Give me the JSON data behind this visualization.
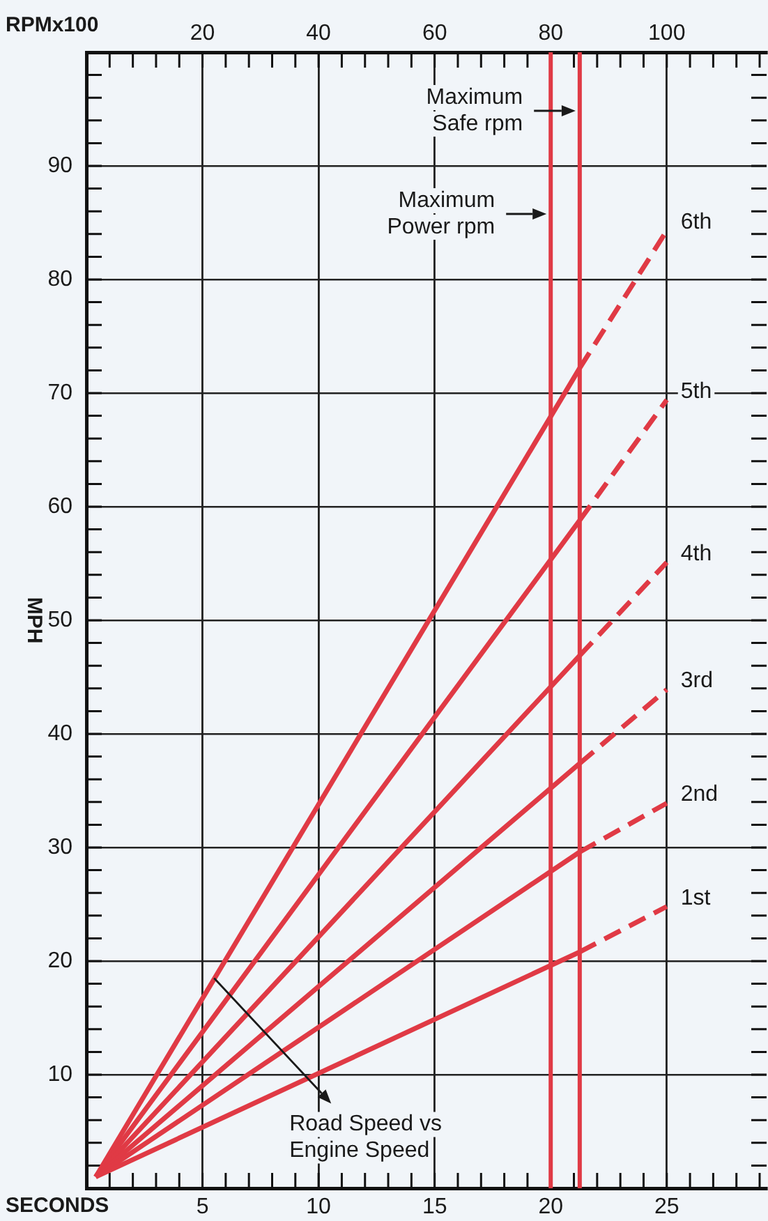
{
  "chart_data": {
    "type": "line",
    "xlabel": "SECONDS",
    "x2label": "RPMx100",
    "ylabel": "MPH",
    "xlim": [
      0,
      29.3
    ],
    "xticks": [
      {
        "value": 1,
        "label": null
      },
      {
        "value": 2,
        "label": null
      },
      {
        "value": 3,
        "label": null
      },
      {
        "value": 4,
        "label": null
      },
      5,
      {
        "value": 6,
        "label": null
      },
      {
        "value": 7,
        "label": null
      },
      {
        "value": 8,
        "label": null
      },
      {
        "value": 9,
        "label": null
      },
      10,
      {
        "value": 11,
        "label": null
      },
      {
        "value": 12,
        "label": null
      },
      {
        "value": 13,
        "label": null
      },
      {
        "value": 14,
        "label": null
      },
      15,
      {
        "value": 16,
        "label": null
      },
      {
        "value": 17,
        "label": null
      },
      {
        "value": 18,
        "label": null
      },
      {
        "value": 19,
        "label": null
      },
      20,
      {
        "value": 21,
        "label": null
      },
      {
        "value": 22,
        "label": null
      },
      {
        "value": 23,
        "label": null
      },
      {
        "value": 24,
        "label": null
      },
      25,
      {
        "value": 26,
        "label": null
      },
      {
        "value": 27,
        "label": null
      },
      {
        "value": 28,
        "label": null
      },
      {
        "value": 29,
        "label": null
      }
    ],
    "x2lim": [
      0,
      117.2
    ],
    "x2ticks": [
      {
        "value": 4,
        "label": null
      },
      {
        "value": 8,
        "label": null
      },
      {
        "value": 12,
        "label": null
      },
      {
        "value": 16,
        "label": null
      },
      20,
      {
        "value": 24,
        "label": null
      },
      {
        "value": 28,
        "label": null
      },
      {
        "value": 32,
        "label": null
      },
      {
        "value": 36,
        "label": null
      },
      40,
      {
        "value": 44,
        "label": null
      },
      {
        "value": 48,
        "label": null
      },
      {
        "value": 52,
        "label": null
      },
      {
        "value": 56,
        "label": null
      },
      60,
      {
        "value": 64,
        "label": null
      },
      {
        "value": 68,
        "label": null
      },
      {
        "value": 72,
        "label": null
      },
      {
        "value": 76,
        "label": null
      },
      80,
      {
        "value": 84,
        "label": null
      },
      {
        "value": 88,
        "label": null
      },
      {
        "value": 92,
        "label": null
      },
      {
        "value": 96,
        "label": null
      },
      100,
      {
        "value": 104,
        "label": null
      },
      {
        "value": 108,
        "label": null
      },
      {
        "value": 112,
        "label": null
      },
      {
        "value": 116,
        "label": null
      }
    ],
    "ylim": [
      0,
      100
    ],
    "yticks": [
      {
        "value": 2,
        "label": null
      },
      {
        "value": 4,
        "label": null
      },
      {
        "value": 6,
        "label": null
      },
      {
        "value": 8,
        "label": null
      },
      10,
      {
        "value": 12,
        "label": null
      },
      {
        "value": 14,
        "label": null
      },
      {
        "value": 16,
        "label": null
      },
      {
        "value": 18,
        "label": null
      },
      20,
      {
        "value": 22,
        "label": null
      },
      {
        "value": 24,
        "label": null
      },
      {
        "value": 26,
        "label": null
      },
      {
        "value": 28,
        "label": null
      },
      30,
      {
        "value": 32,
        "label": null
      },
      {
        "value": 34,
        "label": null
      },
      {
        "value": 36,
        "label": null
      },
      {
        "value": 38,
        "label": null
      },
      40,
      {
        "value": 42,
        "label": null
      },
      {
        "value": 44,
        "label": null
      },
      {
        "value": 46,
        "label": null
      },
      {
        "value": 48,
        "label": null
      },
      50,
      {
        "value": 52,
        "label": null
      },
      {
        "value": 54,
        "label": null
      },
      {
        "value": 56,
        "label": null
      },
      {
        "value": 58,
        "label": null
      },
      60,
      {
        "value": 62,
        "label": null
      },
      {
        "value": 64,
        "label": null
      },
      {
        "value": 66,
        "label": null
      },
      {
        "value": 68,
        "label": null
      },
      70,
      {
        "value": 72,
        "label": null
      },
      {
        "value": 74,
        "label": null
      },
      {
        "value": 76,
        "label": null
      },
      {
        "value": 78,
        "label": null
      },
      80,
      {
        "value": 82,
        "label": null
      },
      {
        "value": 84,
        "label": null
      },
      {
        "value": 86,
        "label": null
      },
      {
        "value": 88,
        "label": null
      },
      90,
      {
        "value": 92,
        "label": null
      },
      {
        "value": 94,
        "label": null
      },
      {
        "value": 96,
        "label": null
      },
      {
        "value": 98,
        "label": null
      }
    ],
    "grid": true,
    "marker": "none",
    "series": [
      {
        "color": "#e03a45",
        "x": [
          0.4,
          21.25
        ],
        "values": [
          1,
          20.8
        ]
      },
      {
        "name": "1st",
        "color": "#e03a45",
        "x": [
          21.25,
          25
        ],
        "values": [
          20.8,
          24.8
        ],
        "line_style": "dashed"
      },
      {
        "color": "#e03a45",
        "x": [
          0.4,
          21.25
        ],
        "values": [
          1,
          29.6
        ]
      },
      {
        "name": "2nd",
        "color": "#e03a45",
        "x": [
          21.25,
          25
        ],
        "values": [
          29.6,
          33.9
        ],
        "line_style": "dashed"
      },
      {
        "color": "#e03a45",
        "x": [
          0.4,
          21.25
        ],
        "values": [
          1,
          37.4
        ]
      },
      {
        "name": "3rd",
        "color": "#e03a45",
        "x": [
          21.25,
          25
        ],
        "values": [
          37.4,
          43.9
        ],
        "line_style": "dashed"
      },
      {
        "color": "#e03a45",
        "x": [
          0.4,
          21.25
        ],
        "values": [
          1,
          46.9
        ]
      },
      {
        "name": "4th",
        "color": "#e03a45",
        "x": [
          21.25,
          25
        ],
        "values": [
          46.9,
          55.1
        ],
        "line_style": "dashed"
      },
      {
        "color": "#e03a45",
        "x": [
          0.4,
          21.25
        ],
        "values": [
          1,
          58.8
        ]
      },
      {
        "name": "5th",
        "color": "#e03a45",
        "x": [
          21.25,
          25
        ],
        "values": [
          58.8,
          69.4
        ],
        "line_style": "dashed"
      },
      {
        "color": "#e03a45",
        "x": [
          0.4,
          21.25
        ],
        "values": [
          1,
          72.2
        ]
      },
      {
        "name": "6th",
        "color": "#e03a45",
        "x": [
          21.25,
          25
        ],
        "values": [
          72.2,
          84.3
        ],
        "line_style": "dashed"
      }
    ],
    "ref_lines": [
      {
        "axis": "x",
        "value": 21.25,
        "label": "Maximum Safe rpm",
        "color": "#e03a45"
      },
      {
        "axis": "x",
        "value": 20,
        "label": "Maximum Power rpm",
        "color": "#e03a45"
      }
    ],
    "annotations": [
      {
        "text": "Road Speed vs Engine Speed",
        "x": 5.5,
        "y": 18.5
      }
    ]
  }
}
